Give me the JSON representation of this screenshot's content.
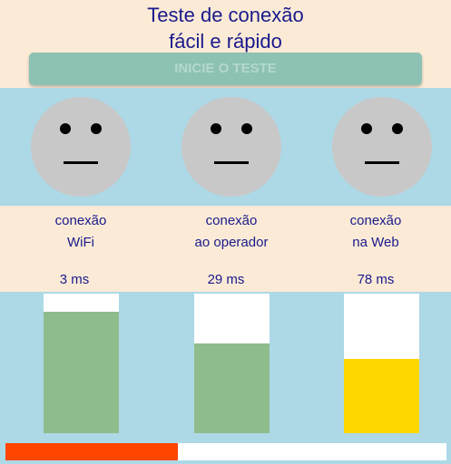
{
  "header": {
    "title_line1": "Teste de conexão",
    "title_line2": "fácil e rápido",
    "start_button": "INICIE O TESTE"
  },
  "colors": {
    "title_text": "#1a1a8c",
    "panel_background": "#add8e6",
    "page_background": "#fbebd6",
    "good_bar": "#8fbc8b",
    "warning_bar": "#ffd700",
    "progress_fill": "#ff4500",
    "face": "#c8c8c8"
  },
  "tests": [
    {
      "line1": "conexão",
      "line2": "WiFi",
      "latency": "3 ms",
      "level": 0.87,
      "bar_color": "#8fbc8b",
      "face": "neutral-face-icon"
    },
    {
      "line1": "conexão",
      "line2": "ao operador",
      "latency": "29 ms",
      "level": 0.64,
      "bar_color": "#8fbc8b",
      "face": "neutral-face-icon"
    },
    {
      "line1": "conexão",
      "line2": "na Web",
      "latency": "78 ms",
      "level": 0.53,
      "bar_color": "#ffd700",
      "face": "neutral-face-icon"
    }
  ],
  "progress": {
    "value": 0.39
  }
}
